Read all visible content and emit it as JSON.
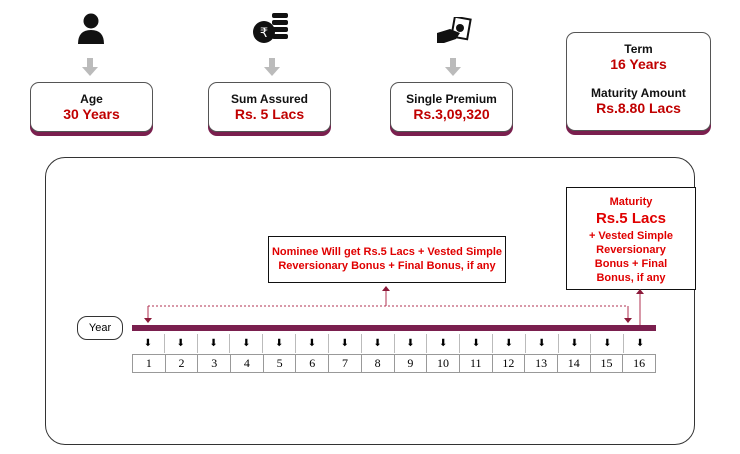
{
  "colors": {
    "accent": "#c00000",
    "bar": "#7a1f4e",
    "arrow": "#bbbbbb"
  },
  "cards": [
    {
      "icon": "user-icon",
      "label": "Age",
      "value": "30 Years"
    },
    {
      "icon": "rupee-coins-icon",
      "label": "Sum Assured",
      "value": "Rs. 5 Lacs"
    },
    {
      "icon": "hand-money-icon",
      "label": "Single Premium",
      "value": "Rs.3,09,320"
    }
  ],
  "term": {
    "label": "Term",
    "value": "16 Years",
    "maturity_label": "Maturity Amount",
    "maturity_value": "Rs.8.80 Lacs"
  },
  "nominee": {
    "line1": "Nominee Will get Rs.5 Lacs + Vested Simple",
    "line2": "Reversionary Bonus + Final Bonus, if any"
  },
  "maturity": {
    "title": "Maturity",
    "amount": "Rs.5 Lacs",
    "l1": "+ Vested Simple",
    "l2": "Reversionary",
    "l3": "Bonus + Final",
    "l4": "Bonus, if any"
  },
  "timeline": {
    "label": "Year",
    "years": [
      "1",
      "2",
      "3",
      "4",
      "5",
      "6",
      "7",
      "8",
      "9",
      "10",
      "11",
      "12",
      "13",
      "14",
      "15",
      "16"
    ]
  }
}
